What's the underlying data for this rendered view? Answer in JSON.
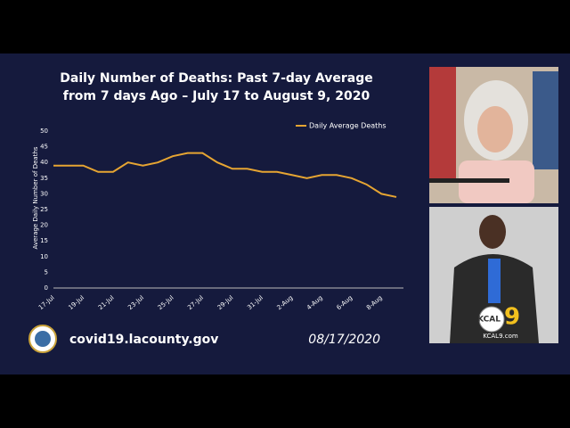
{
  "chart_data": {
    "type": "line",
    "title": "Daily Number of Deaths: Past 7-day Average from 7 days Ago – July 17 to August 9, 2020",
    "y_label": "Average Daily Number of Deaths",
    "categories": [
      "17-Jul",
      null,
      "19-Jul",
      null,
      "21-Jul",
      null,
      "23-Jul",
      null,
      "25-Jul",
      null,
      "27-Jul",
      null,
      "29-Jul",
      null,
      "31-Jul",
      null,
      "2-Aug",
      null,
      "4-Aug",
      null,
      "6-Aug",
      null,
      "8-Aug",
      null
    ],
    "series": [
      {
        "name": "Daily Average Deaths",
        "color": "#e6a532",
        "values": [
          39,
          39,
          39,
          37,
          37,
          40,
          39,
          40,
          42,
          43,
          43,
          40,
          38,
          38,
          37,
          37,
          36,
          35,
          36,
          36,
          35,
          33,
          30,
          29
        ]
      }
    ],
    "ylim": [
      0,
      50
    ],
    "yticks": [
      0,
      5,
      10,
      15,
      20,
      25,
      30,
      35,
      40,
      45,
      50
    ],
    "legend": "top-right",
    "grid": false
  },
  "footer": {
    "website": "covid19.lacounty.gov",
    "date": "08/17/2020"
  },
  "station": {
    "logo": "KCAL",
    "channel": "9",
    "website": "KCAL9.com"
  }
}
